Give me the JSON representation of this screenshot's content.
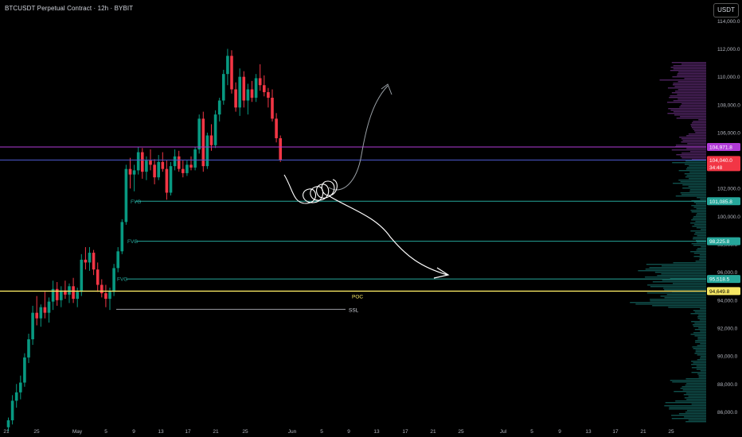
{
  "header": {
    "title": "BTCUSDT Perpetual Contract · 12h · BYBIT"
  },
  "currency_button": "USDT",
  "colors": {
    "bg": "#000000",
    "up": "#089981",
    "down": "#f23645",
    "fvg": "#26a69a",
    "poc": "#f5e663",
    "resistance": "#b13bd8",
    "price_line": "#4f5bd5",
    "ssl": "#d1d4dc",
    "axis_text": "#b2b5be",
    "drawing": "#ffffff",
    "drawing_gray": "#9aa0a6"
  },
  "chart_data": {
    "type": "candlestick",
    "interval": "12h",
    "ylim": [
      85000,
      115500
    ],
    "y_ticks": [
      86000,
      88000,
      90000,
      92000,
      94000,
      96000,
      98000,
      100000,
      102000,
      104000,
      106000,
      108000,
      110000,
      112000,
      114000
    ],
    "y_tick_labels": [
      "86,000.0",
      "88,000.0",
      "90,000.0",
      "92,000.0",
      "94,000.0",
      "96,000.0",
      "98,000.0",
      "100,000.0",
      "102,000.0",
      "104,000.0",
      "106,000.0",
      "108,000.0",
      "110,000.0",
      "112,000.0",
      "114,000.0"
    ],
    "x_tick_labels": [
      "21",
      "25",
      "May",
      "5",
      "9",
      "13",
      "17",
      "21",
      "25",
      "Jun",
      "5",
      "9",
      "13",
      "17",
      "21",
      "25",
      "Jul",
      "5",
      "9",
      "13",
      "17",
      "21",
      "25"
    ],
    "candles": [
      [
        84900,
        85600,
        84600,
        85400
      ],
      [
        85400,
        87200,
        85100,
        86800
      ],
      [
        86800,
        88000,
        86300,
        87400
      ],
      [
        87400,
        88600,
        86900,
        88100
      ],
      [
        88100,
        90200,
        87800,
        89900
      ],
      [
        89900,
        91600,
        89500,
        91200
      ],
      [
        91200,
        93600,
        90800,
        93100
      ],
      [
        93100,
        94300,
        92200,
        92700
      ],
      [
        92700,
        93700,
        92100,
        93500
      ],
      [
        93500,
        94600,
        92700,
        93100
      ],
      [
        93100,
        94200,
        92400,
        93900
      ],
      [
        93900,
        95400,
        93300,
        94800
      ],
      [
        94800,
        95300,
        93600,
        94000
      ],
      [
        94000,
        95000,
        93500,
        94700
      ],
      [
        94700,
        95400,
        94100,
        94400
      ],
      [
        94400,
        95200,
        93800,
        95000
      ],
      [
        95000,
        95600,
        93800,
        94100
      ],
      [
        94100,
        94900,
        93500,
        94600
      ],
      [
        94600,
        97300,
        94300,
        96900
      ],
      [
        96900,
        97800,
        96200,
        96700
      ],
      [
        96700,
        97800,
        96100,
        97400
      ],
      [
        97400,
        97600,
        95800,
        96200
      ],
      [
        96200,
        96700,
        94600,
        95100
      ],
      [
        95100,
        95500,
        94200,
        94500
      ],
      [
        94500,
        95100,
        93500,
        94100
      ],
      [
        94100,
        94900,
        93300,
        94600
      ],
      [
        94600,
        96600,
        94300,
        96300
      ],
      [
        96300,
        97800,
        96000,
        97500
      ],
      [
        97500,
        99800,
        97300,
        99600
      ],
      [
        99600,
        103700,
        99400,
        103400
      ],
      [
        103400,
        104200,
        102000,
        103000
      ],
      [
        103000,
        103700,
        101800,
        103300
      ],
      [
        103300,
        105000,
        103000,
        104600
      ],
      [
        104600,
        104900,
        102700,
        103200
      ],
      [
        103200,
        104300,
        102600,
        104000
      ],
      [
        104000,
        104800,
        103300,
        103700
      ],
      [
        103700,
        104100,
        102300,
        102800
      ],
      [
        102800,
        104400,
        102600,
        103900
      ],
      [
        103900,
        104600,
        103200,
        103400
      ],
      [
        103400,
        104000,
        101200,
        101700
      ],
      [
        101700,
        103900,
        101500,
        103600
      ],
      [
        103600,
        104800,
        103300,
        104300
      ],
      [
        104300,
        104700,
        103200,
        103400
      ],
      [
        103400,
        104000,
        102800,
        103100
      ],
      [
        103100,
        104000,
        102900,
        103700
      ],
      [
        103700,
        104300,
        103300,
        103500
      ],
      [
        103500,
        105000,
        103300,
        104800
      ],
      [
        104800,
        107300,
        104500,
        107000
      ],
      [
        107000,
        107500,
        103200,
        103600
      ],
      [
        103600,
        106000,
        103400,
        105800
      ],
      [
        105800,
        106600,
        104700,
        105100
      ],
      [
        105100,
        107600,
        104900,
        107300
      ],
      [
        107300,
        108500,
        106800,
        108300
      ],
      [
        108300,
        110500,
        108000,
        110200
      ],
      [
        110200,
        112000,
        109400,
        111500
      ],
      [
        111500,
        111900,
        108800,
        109100
      ],
      [
        109100,
        109600,
        107500,
        107800
      ],
      [
        107800,
        110600,
        107200,
        110000
      ],
      [
        110000,
        110400,
        107800,
        108300
      ],
      [
        108300,
        109500,
        107300,
        109100
      ],
      [
        109100,
        109700,
        108200,
        108500
      ],
      [
        108500,
        110200,
        108200,
        109900
      ],
      [
        109900,
        110900,
        109000,
        109400
      ],
      [
        109400,
        110100,
        108600,
        108900
      ],
      [
        108900,
        109200,
        107800,
        108500
      ],
      [
        108500,
        109100,
        106800,
        107000
      ],
      [
        107000,
        107400,
        105300,
        105600
      ],
      [
        105600,
        105800,
        103900,
        104040
      ]
    ],
    "levels": [
      {
        "name": "resistance",
        "value": 104971.8,
        "label": "104,971.8"
      },
      {
        "name": "last-price",
        "value": 104040.0,
        "label": "104,040.0",
        "countdown": "34:48"
      },
      {
        "name": "fvg-1",
        "value": 101085.8,
        "label": "101,085.8",
        "text": "FVG"
      },
      {
        "name": "fvg-2",
        "value": 98225.8,
        "label": "98,225.8",
        "text": "FVG"
      },
      {
        "name": "fvg-3",
        "value": 95518.5,
        "label": "95,518.5",
        "text": "FVG"
      },
      {
        "name": "poc",
        "value": 94649.8,
        "label": "94,649.8",
        "text": "POC"
      },
      {
        "name": "ssl",
        "value": 93350,
        "text": "SSL"
      }
    ]
  }
}
